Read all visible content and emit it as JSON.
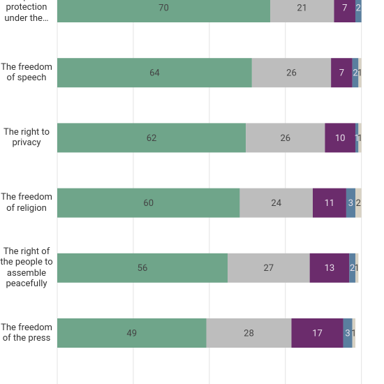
{
  "chart_data": {
    "type": "stacked-bar-horizontal",
    "categories": [
      "equal protection under the…",
      "The freedom of speech",
      "The right to privacy",
      "The freedom of religion",
      "The right of the people to assemble peacefully",
      "The freedom of the press"
    ],
    "series": [
      {
        "color": "#6fa58a",
        "values": [
          70,
          64,
          62,
          60,
          56,
          49
        ]
      },
      {
        "color": "#bdbdbd",
        "values": [
          21,
          26,
          26,
          24,
          27,
          28
        ]
      },
      {
        "color": "#6b2c6c",
        "values": [
          7,
          7,
          10,
          11,
          13,
          17
        ]
      },
      {
        "color": "#5a7f9f",
        "values": [
          2,
          2,
          1,
          3,
          2,
          3
        ]
      },
      {
        "color": "#d8d2c4",
        "values": [
          null,
          1,
          1,
          2,
          1,
          1
        ]
      }
    ],
    "xlim": [
      0,
      100
    ],
    "xticks": [
      0,
      25,
      50,
      75,
      100
    ],
    "grid": true
  }
}
